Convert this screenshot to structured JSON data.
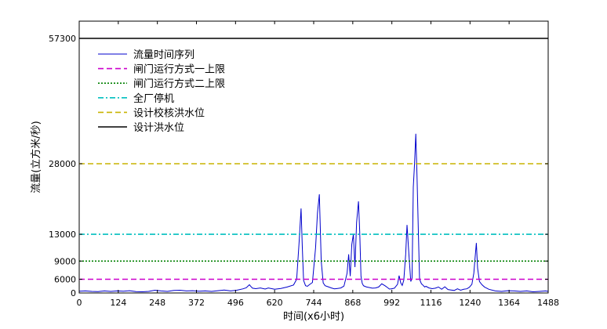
{
  "chart_data": {
    "type": "line",
    "title": "",
    "xlabel": "时间(x6小时)",
    "ylabel": "流量(立方米/秒)",
    "xlim": [
      0,
      1488
    ],
    "ylim": [
      0,
      57300
    ],
    "x_ticks": [
      0,
      124,
      248,
      372,
      496,
      620,
      744,
      868,
      992,
      1116,
      1240,
      1364,
      1488
    ],
    "y_ticks": [
      0,
      6000,
      9000,
      13000,
      28000,
      57300
    ],
    "grid": false,
    "legend_position": "top-left",
    "series": [
      {
        "name": "流量时间序列",
        "color": "#0000cc",
        "style": "solid",
        "x": [
          0,
          20,
          40,
          60,
          80,
          100,
          120,
          140,
          160,
          180,
          200,
          220,
          240,
          260,
          280,
          300,
          320,
          340,
          360,
          380,
          400,
          420,
          440,
          460,
          480,
          500,
          520,
          530,
          540,
          545,
          550,
          560,
          575,
          590,
          600,
          620,
          640,
          660,
          680,
          690,
          698,
          704,
          708,
          712,
          718,
          724,
          730,
          740,
          750,
          756,
          762,
          768,
          774,
          780,
          790,
          800,
          810,
          820,
          830,
          840,
          850,
          855,
          860,
          865,
          870,
          875,
          880,
          886,
          890,
          894,
          898,
          902,
          906,
          912,
          920,
          930,
          940,
          950,
          960,
          970,
          978,
          984,
          990,
          1000,
          1010,
          1015,
          1020,
          1025,
          1030,
          1036,
          1040,
          1046,
          1052,
          1056,
          1060,
          1064,
          1068,
          1072,
          1076,
          1080,
          1086,
          1090,
          1096,
          1100,
          1110,
          1120,
          1130,
          1140,
          1150,
          1160,
          1170,
          1180,
          1190,
          1200,
          1210,
          1220,
          1230,
          1238,
          1246,
          1252,
          1256,
          1260,
          1264,
          1270,
          1278,
          1286,
          1300,
          1320,
          1340,
          1360,
          1380,
          1400,
          1420,
          1440,
          1460,
          1480,
          1488
        ],
        "values": [
          800,
          900,
          700,
          600,
          900,
          700,
          900,
          800,
          1000,
          600,
          500,
          700,
          1200,
          900,
          700,
          1100,
          1200,
          900,
          1000,
          800,
          900,
          700,
          1000,
          1300,
          900,
          1200,
          1800,
          2300,
          3600,
          2800,
          2100,
          1900,
          2200,
          1700,
          2200,
          1600,
          2000,
          2600,
          3500,
          6000,
          12000,
          18500,
          11000,
          5500,
          3200,
          2900,
          3600,
          4600,
          11000,
          17500,
          21500,
          9000,
          4400,
          3200,
          2700,
          2200,
          1800,
          2000,
          2200,
          3000,
          7000,
          10000,
          6500,
          11500,
          13000,
          8000,
          15500,
          20000,
          13500,
          6500,
          4200,
          3200,
          2900,
          2600,
          2400,
          2100,
          2200,
          2600,
          4000,
          3200,
          2400,
          1700,
          1800,
          2100,
          3800,
          6600,
          4500,
          3300,
          5600,
          10000,
          15000,
          10000,
          5000,
          6200,
          23000,
          28000,
          35000,
          25000,
          14000,
          6000,
          4000,
          3500,
          2600,
          2900,
          2200,
          1900,
          2100,
          2600,
          1600,
          2700,
          1500,
          1300,
          1100,
          1800,
          1200,
          1600,
          1800,
          2500,
          3800,
          7000,
          9500,
          11700,
          7800,
          5000,
          3600,
          2600,
          1600,
          900,
          700,
          1000,
          900,
          700,
          900,
          500,
          700,
          900,
          700
        ]
      },
      {
        "name": "闸门运行方式一上限",
        "color": "#cc00cc",
        "style": "dashed",
        "x": [
          0,
          1488
        ],
        "values": [
          6000,
          6000
        ]
      },
      {
        "name": "闸门运行方式二上限",
        "color": "#008000",
        "style": "dotted",
        "x": [
          0,
          1488
        ],
        "values": [
          9000,
          9000
        ]
      },
      {
        "name": "全厂停机",
        "color": "#00bfbf",
        "style": "dashdot",
        "x": [
          0,
          1488
        ],
        "values": [
          13000,
          13000
        ]
      },
      {
        "name": "设计校核洪水位",
        "color": "#c8b400",
        "style": "dashed",
        "x": [
          0,
          1488
        ],
        "values": [
          28000,
          28000
        ]
      },
      {
        "name": "设计洪水位",
        "color": "#000000",
        "style": "solid",
        "x": [
          0,
          1488
        ],
        "values": [
          57300,
          57300
        ]
      }
    ]
  }
}
